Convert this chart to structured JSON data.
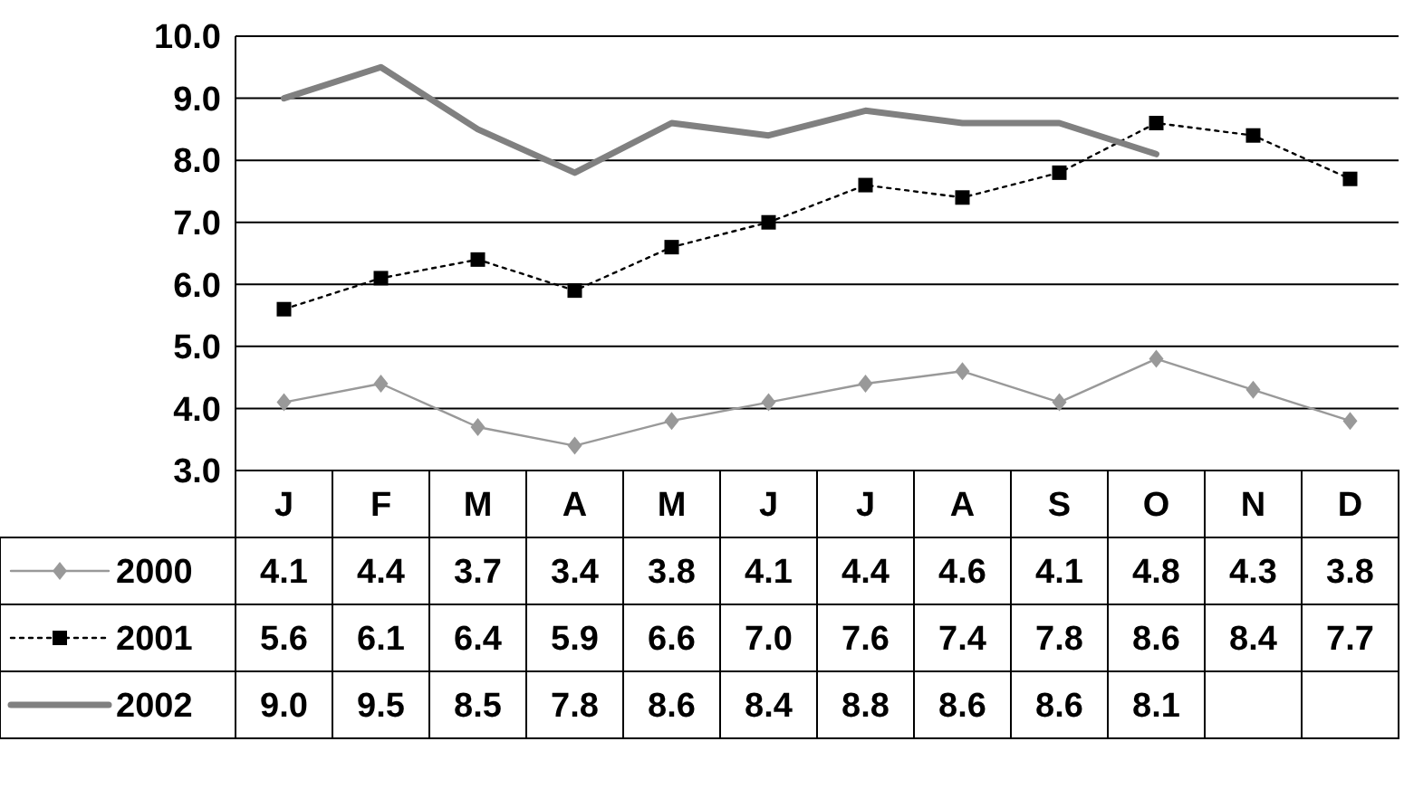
{
  "chart_data": {
    "type": "line",
    "categories": [
      "J",
      "F",
      "M",
      "A",
      "M",
      "J",
      "J",
      "A",
      "S",
      "O",
      "N",
      "D"
    ],
    "ylim": [
      3,
      10
    ],
    "yticks": [
      {
        "value": 3,
        "label": "3.0"
      },
      {
        "value": 4,
        "label": "4.0"
      },
      {
        "value": 5,
        "label": "5.0"
      },
      {
        "value": 6,
        "label": "6.0"
      },
      {
        "value": 7,
        "label": "7.0"
      },
      {
        "value": 8,
        "label": "8.0"
      },
      {
        "value": 9,
        "label": "9.0"
      },
      {
        "value": 10,
        "label": "10.0"
      }
    ],
    "grid": "y",
    "legend": "bottom",
    "series": [
      {
        "name": "2000",
        "color": "#999999",
        "marker": "diamond",
        "line_style": "solid",
        "values": [
          4.1,
          4.4,
          3.7,
          3.4,
          3.8,
          4.1,
          4.4,
          4.6,
          4.1,
          4.8,
          4.3,
          3.8
        ],
        "value_labels": [
          "4.1",
          "4.4",
          "3.7",
          "3.4",
          "3.8",
          "4.1",
          "4.4",
          "4.6",
          "4.1",
          "4.8",
          "4.3",
          "3.8"
        ]
      },
      {
        "name": "2001",
        "color": "#000000",
        "marker": "square",
        "line_style": "dotted",
        "values": [
          5.6,
          6.1,
          6.4,
          5.9,
          6.6,
          7.0,
          7.6,
          7.4,
          7.8,
          8.6,
          8.4,
          7.7
        ],
        "value_labels": [
          "5.6",
          "6.1",
          "6.4",
          "5.9",
          "6.6",
          "7.0",
          "7.6",
          "7.4",
          "7.8",
          "8.6",
          "8.4",
          "7.7"
        ]
      },
      {
        "name": "2002",
        "color": "#808080",
        "marker": "none",
        "line_style": "solid",
        "values": [
          9.0,
          9.5,
          8.5,
          7.8,
          8.6,
          8.4,
          8.8,
          8.6,
          8.6,
          8.1,
          null,
          null
        ],
        "value_labels": [
          "9.0",
          "9.5",
          "8.5",
          "7.8",
          "8.6",
          "8.4",
          "8.8",
          "8.6",
          "8.6",
          "8.1",
          null,
          null
        ]
      }
    ]
  }
}
